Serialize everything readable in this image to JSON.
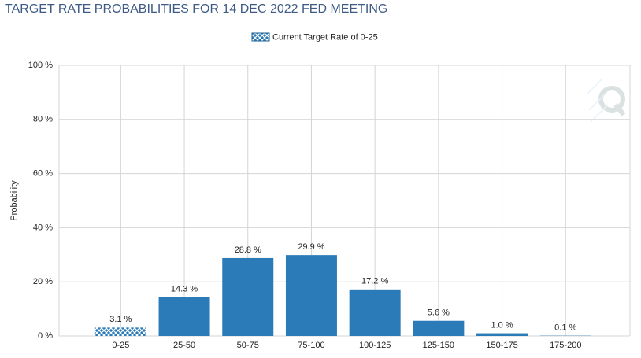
{
  "chart_data": {
    "type": "bar",
    "title": "TARGET RATE PROBABILITIES FOR 14 DEC 2022 FED MEETING",
    "y_label": "Probability",
    "legend": "Current Target Rate of 0-25",
    "categories": [
      "0-25",
      "25-50",
      "50-75",
      "75-100",
      "100-125",
      "125-150",
      "150-175",
      "175-200"
    ],
    "values": [
      3.1,
      14.3,
      28.8,
      29.9,
      17.2,
      5.6,
      1.0,
      0.1
    ],
    "value_labels": [
      "3.1 %",
      "14.3 %",
      "28.8 %",
      "29.9 %",
      "17.2 %",
      "5.6 %",
      "1.0 %",
      "0.1 %"
    ],
    "color": "#2b7bb9",
    "highlight_index": 0,
    "ylim": [
      0,
      100
    ],
    "yticks": [
      {
        "value": 0,
        "label": "0 %"
      },
      {
        "value": 20,
        "label": "20 %"
      },
      {
        "value": 40,
        "label": "40 %"
      },
      {
        "value": 60,
        "label": "60 %"
      },
      {
        "value": 80,
        "label": "80 %"
      },
      {
        "value": 100,
        "label": "100 %"
      }
    ],
    "grid": true
  }
}
